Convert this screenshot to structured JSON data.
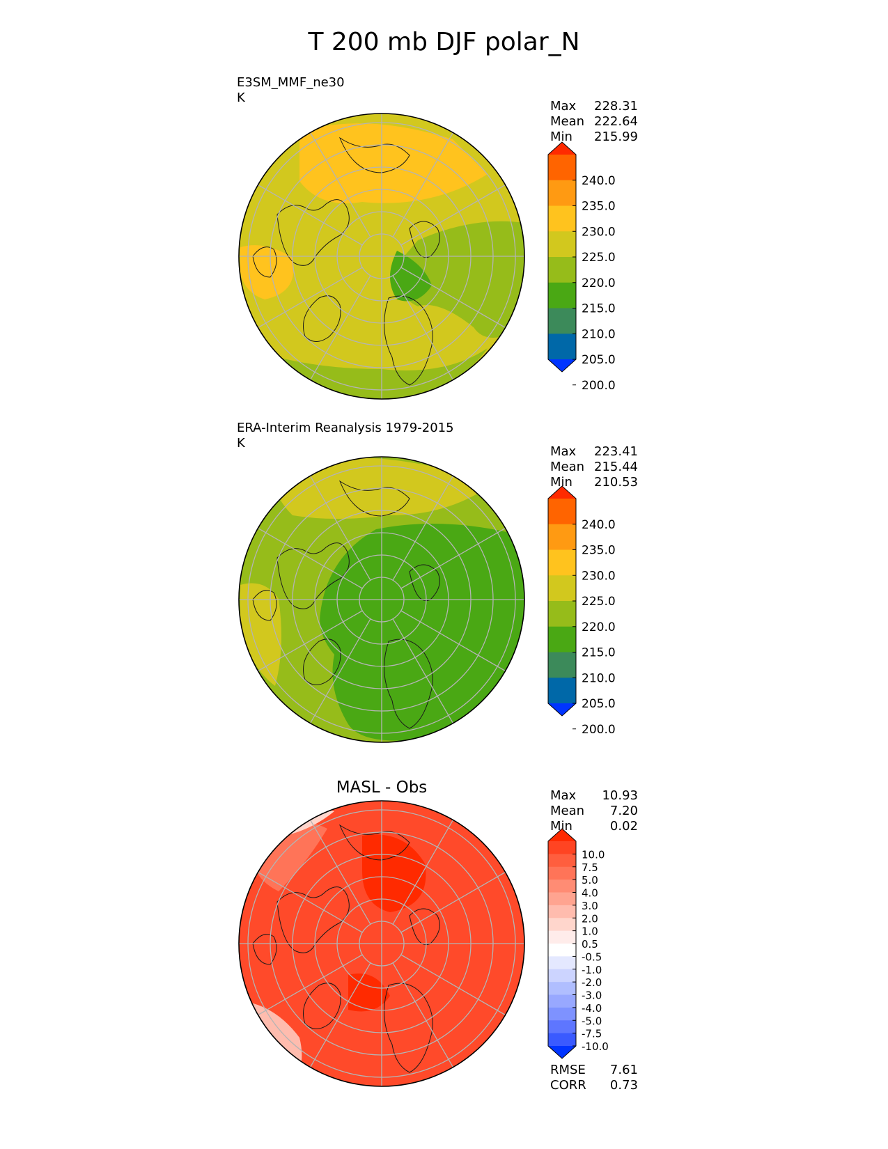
{
  "title": "T 200 mb DJF polar_N",
  "panels": [
    {
      "id": "model",
      "title_line1": "E3SM_MMF_ne30",
      "title_line2": "K",
      "stats": [
        {
          "label": "Max",
          "value": "228.31"
        },
        {
          "label": "Mean",
          "value": "222.64"
        },
        {
          "label": "Min",
          "value": "215.99"
        }
      ],
      "dominant_color": "#d2c81e",
      "colorbar": {
        "ticks": [
          "240.0",
          "235.0",
          "230.0",
          "225.0",
          "220.0",
          "215.0",
          "210.0",
          "205.0",
          "200.0"
        ],
        "colors_top_to_bottom": [
          "#ff2a00",
          "#ff6400",
          "#ff9a12",
          "#ffc31e",
          "#d2c81e",
          "#96bc1a",
          "#4aa814",
          "#3c8a5a",
          "#0068a8",
          "#0034ff"
        ]
      }
    },
    {
      "id": "obs",
      "title_line1": "ERA-Interim Reanalysis 1979-2015",
      "title_line2": "K",
      "stats": [
        {
          "label": "Max",
          "value": "223.41"
        },
        {
          "label": "Mean",
          "value": "215.44"
        },
        {
          "label": "Min",
          "value": "210.53"
        }
      ],
      "dominant_color": "#96bc1a",
      "colorbar": {
        "ticks": [
          "240.0",
          "235.0",
          "230.0",
          "225.0",
          "220.0",
          "215.0",
          "210.0",
          "205.0",
          "200.0"
        ],
        "colors_top_to_bottom": [
          "#ff2a00",
          "#ff6400",
          "#ff9a12",
          "#ffc31e",
          "#d2c81e",
          "#96bc1a",
          "#4aa814",
          "#3c8a5a",
          "#0068a8",
          "#0034ff"
        ]
      }
    },
    {
      "id": "diff",
      "title_center": "MASL - Obs",
      "stats": [
        {
          "label": "Max",
          "value": "10.93"
        },
        {
          "label": "Mean",
          "value": "7.20"
        },
        {
          "label": "Min",
          "value": "0.02"
        }
      ],
      "metrics": [
        {
          "label": "RMSE",
          "value": "7.61"
        },
        {
          "label": "CORR",
          "value": "0.73"
        }
      ],
      "dominant_color": "#ff4a2a",
      "colorbar": {
        "ticks": [
          "10.0",
          "7.5",
          "5.0",
          "4.0",
          "3.0",
          "2.0",
          "1.0",
          "0.5",
          "-0.5",
          "-1.0",
          "-2.0",
          "-3.0",
          "-4.0",
          "-5.0",
          "-7.5",
          "-10.0"
        ],
        "colors_top_to_bottom": [
          "#ff2a00",
          "#ff4422",
          "#ff5e3e",
          "#ff7458",
          "#ff8c74",
          "#ffa490",
          "#ffbcae",
          "#ffd6cc",
          "#ffecea",
          "#ffffff",
          "#e4e8ff",
          "#ccd4ff",
          "#b0beff",
          "#98a8ff",
          "#7e92ff",
          "#5e76ff",
          "#3a5aff",
          "#0034ff"
        ]
      }
    }
  ]
}
